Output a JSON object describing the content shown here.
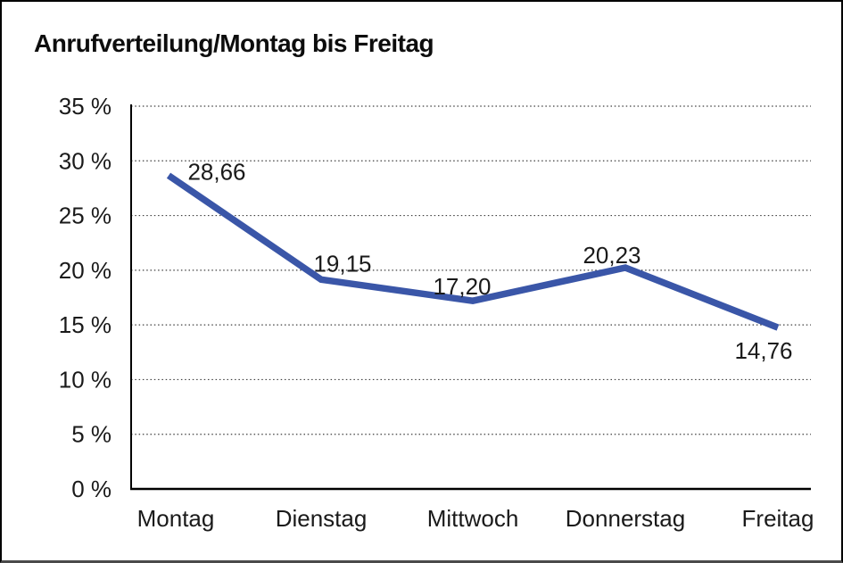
{
  "chart_data": {
    "type": "line",
    "title": "Anrufverteilung/Montag bis Freitag",
    "categories": [
      "Montag",
      "Dienstag",
      "Mittwoch",
      "Donnerstag",
      "Freitag"
    ],
    "series": [
      {
        "name": "Anrufverteilung",
        "values": [
          28.66,
          19.15,
          17.2,
          20.23,
          14.76
        ]
      }
    ],
    "data_labels": [
      "28,66",
      "19,15",
      "17,20",
      "20,23",
      "14,76"
    ],
    "xlabel": "",
    "ylabel": "",
    "ylim": [
      0,
      35
    ],
    "y_tick_step": 5,
    "y_ticks": [
      {
        "value": 0,
        "label": "0 %"
      },
      {
        "value": 5,
        "label": "5 %"
      },
      {
        "value": 10,
        "label": "10 %"
      },
      {
        "value": 15,
        "label": "15 %"
      },
      {
        "value": 20,
        "label": "20 %"
      },
      {
        "value": 25,
        "label": "25 %"
      },
      {
        "value": 30,
        "label": "30 %"
      },
      {
        "value": 35,
        "label": "35 %"
      }
    ],
    "grid": "horizontal-dotted",
    "legend": "none",
    "colors": {
      "line": "#3a56a8",
      "text": "#1a1a1a",
      "grid": "#3f3f3f",
      "axis": "#000000",
      "background": "#ffffff"
    }
  }
}
